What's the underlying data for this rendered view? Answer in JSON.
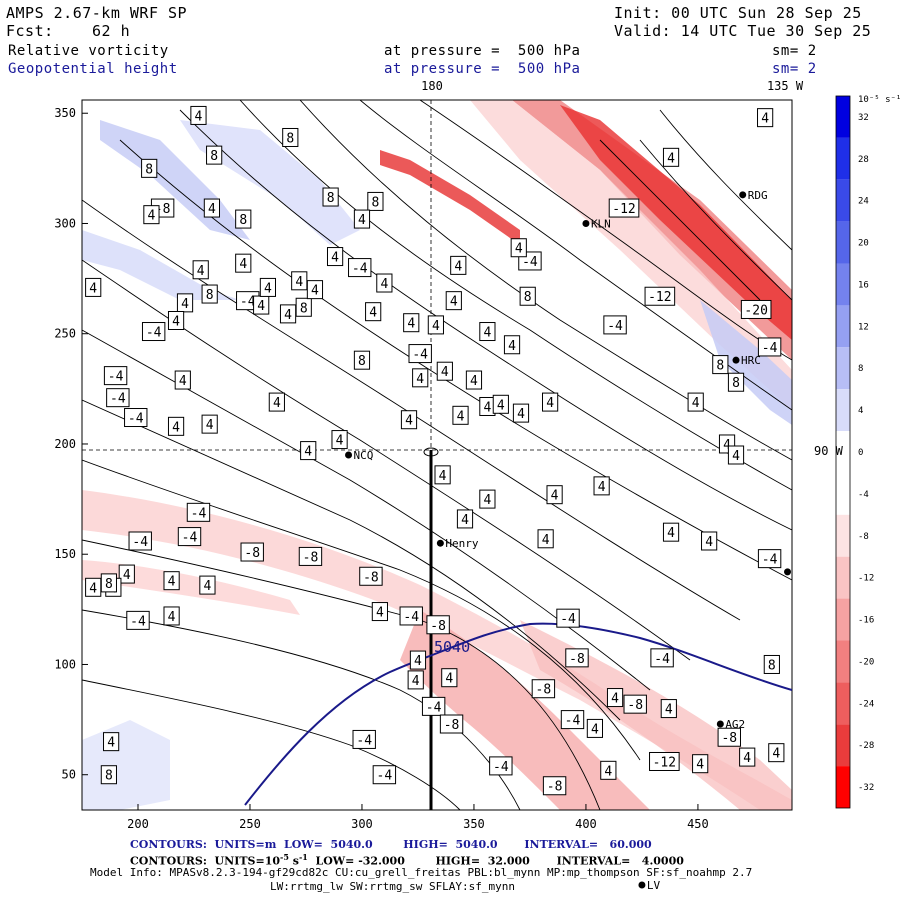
{
  "header": {
    "model": "AMPS 2.67-km WRF SP",
    "init": "Init: 00 UTC Sun 28 Sep 25",
    "fcst_label": "Fcst:",
    "fcst_value": "62 h",
    "valid": "Valid: 14 UTC Tue 30 Sep 25",
    "field1_name": "Relative vorticity",
    "field1_level": "at pressure =  500 hPa",
    "field1_sm": "sm= 2",
    "field2_name": "Geopotential height",
    "field2_level": "at pressure =  500 hPa",
    "field2_sm": "sm= 2"
  },
  "map": {
    "lon_180_label": "180",
    "lon_135w_label": "135 W",
    "lon_90w_label": "90 W",
    "contour_label_5040": "5040",
    "stations": [
      {
        "name": "LV",
        "x": 425,
        "y": 0
      },
      {
        "name": "RDG",
        "x": 470,
        "y": 313
      },
      {
        "name": "KLN",
        "x": 400,
        "y": 300
      },
      {
        "name": "HRC",
        "x": 467,
        "y": 238
      },
      {
        "name": "NCQ",
        "x": 294,
        "y": 195
      },
      {
        "name": "Henry",
        "x": 335,
        "y": 155
      },
      {
        "name": "AG2",
        "x": 460,
        "y": 73
      },
      {
        "name": "",
        "x": 490,
        "y": 142
      }
    ],
    "neg_labels": [
      {
        "t": "-8",
        "x": 211,
        "y": 307
      },
      {
        "t": "-4",
        "x": 299,
        "y": 280
      },
      {
        "t": "-4",
        "x": 249,
        "y": 265
      },
      {
        "t": "-4",
        "x": 207,
        "y": 251
      },
      {
        "t": "-4",
        "x": 190,
        "y": 231
      },
      {
        "t": "-4",
        "x": 199,
        "y": 212
      },
      {
        "t": "-4",
        "x": 326,
        "y": 241
      },
      {
        "t": "-4",
        "x": 375,
        "y": 283
      },
      {
        "t": "-12",
        "x": 417,
        "y": 307
      },
      {
        "t": "-12",
        "x": 433,
        "y": 267
      },
      {
        "t": "-20",
        "x": 476,
        "y": 261
      },
      {
        "t": "-4",
        "x": 482,
        "y": 244
      },
      {
        "t": "-4",
        "x": 413,
        "y": 254
      },
      {
        "t": "-4",
        "x": 227,
        "y": 169
      },
      {
        "t": "-4",
        "x": 201,
        "y": 156
      },
      {
        "t": "-4",
        "x": 223,
        "y": 158
      },
      {
        "t": "-8",
        "x": 251,
        "y": 151
      },
      {
        "t": "-8",
        "x": 277,
        "y": 149
      },
      {
        "t": "-8",
        "x": 304,
        "y": 140
      },
      {
        "t": "-4",
        "x": 322,
        "y": 122
      },
      {
        "t": "-4",
        "x": 200,
        "y": 120
      },
      {
        "t": "-4",
        "x": 392,
        "y": 121
      },
      {
        "t": "-8",
        "x": 396,
        "y": 103
      },
      {
        "t": "-8",
        "x": 381,
        "y": 89
      },
      {
        "t": "-8",
        "x": 422,
        "y": 82
      },
      {
        "t": "-4",
        "x": 394,
        "y": 75
      },
      {
        "t": "-12",
        "x": 435,
        "y": 56
      },
      {
        "t": "-8",
        "x": 464,
        "y": 67
      },
      {
        "t": "-4",
        "x": 482,
        "y": 148
      },
      {
        "t": "-4",
        "x": 301,
        "y": 66
      },
      {
        "t": "-4",
        "x": 310,
        "y": 50
      },
      {
        "t": "-4",
        "x": 332,
        "y": 81
      },
      {
        "t": "-8",
        "x": 340,
        "y": 73
      },
      {
        "t": "-4",
        "x": 362,
        "y": 54
      },
      {
        "t": "-8",
        "x": 386,
        "y": 45
      },
      {
        "t": "-4",
        "x": 434,
        "y": 103
      },
      {
        "t": "-4",
        "x": 191,
        "y": 221
      },
      {
        "t": "-8",
        "x": 334,
        "y": 118
      }
    ],
    "pos_labels": [
      {
        "t": "4",
        "x": 227,
        "y": 349
      },
      {
        "t": "8",
        "x": 268,
        "y": 339
      },
      {
        "t": "8",
        "x": 234,
        "y": 331
      },
      {
        "t": "8",
        "x": 205,
        "y": 325
      },
      {
        "t": "4",
        "x": 233,
        "y": 307
      },
      {
        "t": "4",
        "x": 206,
        "y": 304
      },
      {
        "t": "8",
        "x": 247,
        "y": 302
      },
      {
        "t": "4",
        "x": 247,
        "y": 282
      },
      {
        "t": "4",
        "x": 228,
        "y": 279
      },
      {
        "t": "4",
        "x": 272,
        "y": 274
      },
      {
        "t": "8",
        "x": 274,
        "y": 262
      },
      {
        "t": "4",
        "x": 221,
        "y": 264
      },
      {
        "t": "8",
        "x": 232,
        "y": 268
      },
      {
        "t": "4",
        "x": 255,
        "y": 263
      },
      {
        "t": "4",
        "x": 279,
        "y": 270
      },
      {
        "t": "4",
        "x": 180,
        "y": 271
      },
      {
        "t": "4",
        "x": 267,
        "y": 259
      },
      {
        "t": "4",
        "x": 305,
        "y": 260
      },
      {
        "t": "4",
        "x": 217,
        "y": 256
      },
      {
        "t": "4",
        "x": 288,
        "y": 285
      },
      {
        "t": "4",
        "x": 258,
        "y": 271
      },
      {
        "t": "4",
        "x": 310,
        "y": 273
      },
      {
        "t": "8",
        "x": 306,
        "y": 310
      },
      {
        "t": "8",
        "x": 286,
        "y": 312
      },
      {
        "t": "4",
        "x": 300,
        "y": 302
      },
      {
        "t": "4",
        "x": 343,
        "y": 281
      },
      {
        "t": "8",
        "x": 374,
        "y": 267
      },
      {
        "t": "4",
        "x": 341,
        "y": 265
      },
      {
        "t": "4",
        "x": 356,
        "y": 251
      },
      {
        "t": "4",
        "x": 367,
        "y": 245
      },
      {
        "t": "4",
        "x": 333,
        "y": 254
      },
      {
        "t": "4",
        "x": 350,
        "y": 229
      },
      {
        "t": "4",
        "x": 337,
        "y": 233
      },
      {
        "t": "8",
        "x": 300,
        "y": 238
      },
      {
        "t": "4",
        "x": 322,
        "y": 255
      },
      {
        "t": "4",
        "x": 326,
        "y": 230
      },
      {
        "t": "4",
        "x": 321,
        "y": 211
      },
      {
        "t": "4",
        "x": 262,
        "y": 219
      },
      {
        "t": "4",
        "x": 290,
        "y": 202
      },
      {
        "t": "4",
        "x": 276,
        "y": 197
      },
      {
        "t": "4",
        "x": 232,
        "y": 209
      },
      {
        "t": "4",
        "x": 220,
        "y": 229
      },
      {
        "t": "4",
        "x": 217,
        "y": 208
      },
      {
        "t": "4",
        "x": 384,
        "y": 219
      },
      {
        "t": "4",
        "x": 356,
        "y": 217
      },
      {
        "t": "4",
        "x": 344,
        "y": 213
      },
      {
        "t": "4",
        "x": 371,
        "y": 214
      },
      {
        "t": "4",
        "x": 362,
        "y": 218
      },
      {
        "t": "4",
        "x": 407,
        "y": 181
      },
      {
        "t": "4",
        "x": 449,
        "y": 219
      },
      {
        "t": "8",
        "x": 460,
        "y": 236
      },
      {
        "t": "8",
        "x": 467,
        "y": 228
      },
      {
        "t": "4",
        "x": 463,
        "y": 200
      },
      {
        "t": "4",
        "x": 467,
        "y": 195
      },
      {
        "t": "4",
        "x": 480,
        "y": 348
      },
      {
        "t": "4",
        "x": 438,
        "y": 330
      },
      {
        "t": "4",
        "x": 336,
        "y": 186
      },
      {
        "t": "4",
        "x": 356,
        "y": 175
      },
      {
        "t": "4",
        "x": 346,
        "y": 166
      },
      {
        "t": "4",
        "x": 386,
        "y": 177
      },
      {
        "t": "4",
        "x": 382,
        "y": 157
      },
      {
        "t": "4",
        "x": 438,
        "y": 160
      },
      {
        "t": "4",
        "x": 455,
        "y": 156
      },
      {
        "t": "4",
        "x": 195,
        "y": 141
      },
      {
        "t": "4",
        "x": 189,
        "y": 135
      },
      {
        "t": "4",
        "x": 231,
        "y": 136
      },
      {
        "t": "4",
        "x": 215,
        "y": 138
      },
      {
        "t": "4",
        "x": 180,
        "y": 135
      },
      {
        "t": "8",
        "x": 187,
        "y": 137
      },
      {
        "t": "4",
        "x": 324,
        "y": 93
      },
      {
        "t": "4",
        "x": 325,
        "y": 102
      },
      {
        "t": "4",
        "x": 339,
        "y": 94
      },
      {
        "t": "4",
        "x": 437,
        "y": 80
      },
      {
        "t": "4",
        "x": 485,
        "y": 60
      },
      {
        "t": "4",
        "x": 472,
        "y": 58
      },
      {
        "t": "4",
        "x": 413,
        "y": 85
      },
      {
        "t": "4",
        "x": 404,
        "y": 71
      },
      {
        "t": "8",
        "x": 483,
        "y": 100
      },
      {
        "t": "4",
        "x": 451,
        "y": 55
      },
      {
        "t": "4",
        "x": 410,
        "y": 52
      },
      {
        "t": "4",
        "x": 188,
        "y": 65
      },
      {
        "t": "8",
        "x": 187,
        "y": 50
      },
      {
        "t": "4",
        "x": 215,
        "y": 122
      },
      {
        "t": "4",
        "x": 308,
        "y": 124
      },
      {
        "t": "4",
        "x": 370,
        "y": 289
      }
    ]
  },
  "axes": {
    "x_ticks": [
      "200",
      "250",
      "300",
      "350",
      "400",
      "450"
    ],
    "x_tick_values": [
      200,
      250,
      300,
      350,
      400,
      450
    ],
    "y_ticks": [
      "50",
      "100",
      "150",
      "200",
      "250",
      "300",
      "350"
    ],
    "y_tick_values": [
      50,
      100,
      150,
      200,
      250,
      300,
      350
    ],
    "x_range": [
      175,
      492
    ],
    "y_range": [
      34,
      356
    ]
  },
  "colorbar": {
    "unit_label": "10⁻⁵ s⁻¹",
    "labels": [
      "32",
      "28",
      "24",
      "20",
      "16",
      "12",
      "8",
      "4",
      "0",
      "-4",
      "-8",
      "-12",
      "-16",
      "-20",
      "-24",
      "-28",
      "-32"
    ],
    "label_values": [
      32,
      28,
      24,
      20,
      16,
      12,
      8,
      4,
      0,
      -4,
      -8,
      -12,
      -16,
      -20,
      -24,
      -28,
      -32
    ],
    "colors": [
      "#0000e0",
      "#1f2fe8",
      "#3a4ae8",
      "#5566ea",
      "#7482ee",
      "#95a0f2",
      "#b7bef6",
      "#d8dcfa",
      "#ffffff",
      "#ffffff",
      "#fde3e3",
      "#fac4c4",
      "#f6a2a2",
      "#f28080",
      "#ee5e5e",
      "#ea3c3c",
      "#ff0000"
    ]
  },
  "footer": {
    "line1": "CONTOURS:  UNITS=m  LOW=  5040.0        HIGH=  5040.0       INTERVAL=   60.000",
    "line2_a": "CONTOURS:  UNITS=10",
    "line2_sup1": "-5",
    "line2_b": " s",
    "line2_sup2": "-1",
    "line2_c": "  LOW= -32.000        HIGH=  32.000       INTERVAL=   4.0000",
    "line3": "Model Info: MPASv8.2.3-194-gf29cd82c CU:cu_grell_freitas PBL:bl_mynn MP:mp_thompson SF:sf_noahmp 2.7",
    "line4": "LW:rrtmg_lw SW:rrtmg_sw SFLAY:sf_mynn"
  }
}
